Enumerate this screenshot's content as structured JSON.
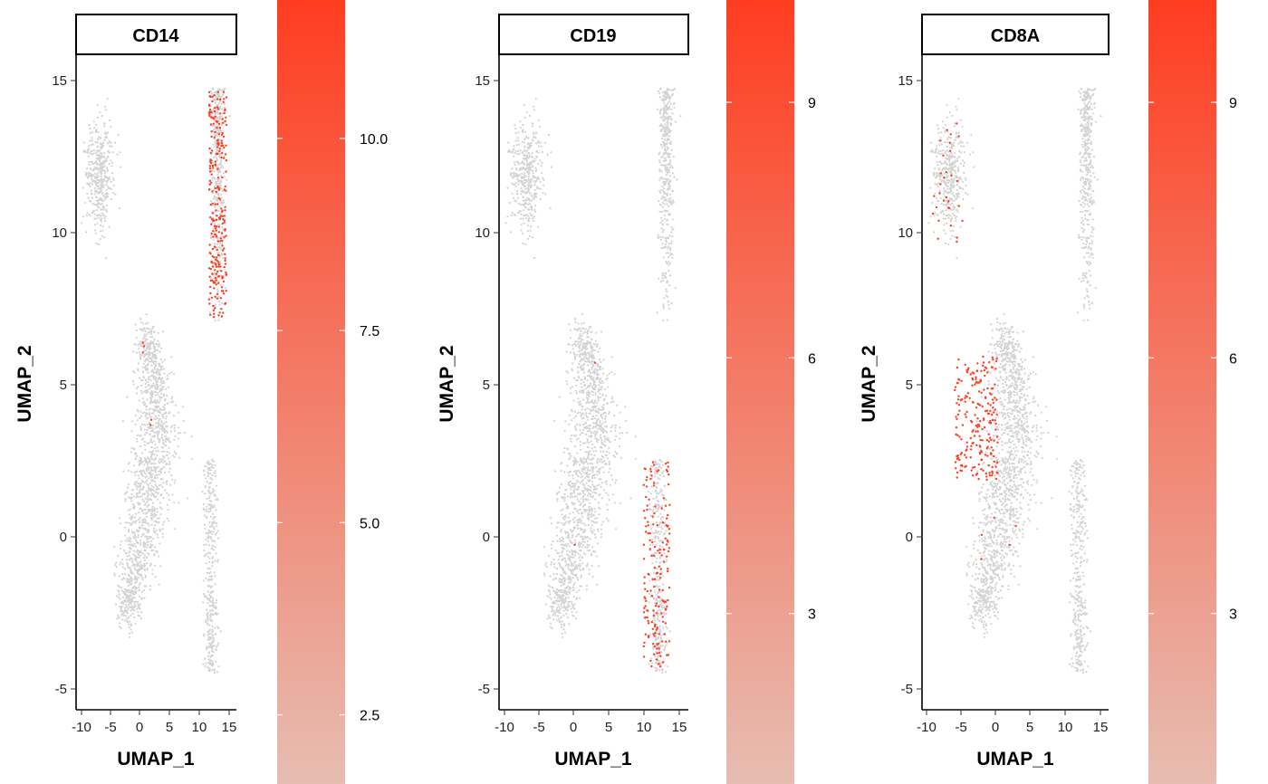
{
  "chart_data": [
    {
      "type": "scatter",
      "title": "CD14",
      "xlabel": "UMAP_1",
      "ylabel": "UMAP_2",
      "xticks": [
        "-10",
        "-5",
        "0",
        "5",
        "10",
        "15"
      ],
      "yticks": [
        "-5",
        "0",
        "5",
        "10",
        "15"
      ],
      "xlim": [
        -11,
        16.5
      ],
      "ylim": [
        -5.8,
        15.8
      ],
      "background_color": "#d3d3d3",
      "legend": {
        "labels": [
          "2.5",
          "5.0",
          "7.5",
          "10.0"
        ],
        "breaks": [
          2.5,
          5.0,
          7.5,
          10.0
        ],
        "range": [
          1.6,
          11.8
        ],
        "low_color": "#e6bdb1",
        "high_color": "#ff3d20",
        "position": "right"
      },
      "highlight_regions": [
        {
          "x": [
            11.8,
            14.8
          ],
          "y": [
            7.2,
            14.7
          ],
          "count": 260
        },
        {
          "x": [
            0.2,
            0.8
          ],
          "y": [
            5.9,
            6.6
          ],
          "count": 3
        },
        {
          "x": [
            1.5,
            2.5
          ],
          "y": [
            3.5,
            3.9
          ],
          "count": 2
        }
      ]
    },
    {
      "type": "scatter",
      "title": "CD19",
      "xlabel": "UMAP_1",
      "ylabel": "UMAP_2",
      "xticks": [
        "-10",
        "-5",
        "0",
        "5",
        "10",
        "15"
      ],
      "yticks": [
        "-5",
        "0",
        "5",
        "10",
        "15"
      ],
      "xlim": [
        -11,
        16.5
      ],
      "ylim": [
        -5.8,
        15.8
      ],
      "background_color": "#d3d3d3",
      "legend": {
        "labels": [
          "3",
          "6",
          "9"
        ],
        "breaks": [
          3,
          6,
          9
        ],
        "range": [
          1.0,
          10.2
        ],
        "low_color": "#e6bdb1",
        "high_color": "#ff3d20",
        "position": "right"
      },
      "highlight_regions": [
        {
          "x": [
            10.0,
            13.8
          ],
          "y": [
            -4.5,
            2.4
          ],
          "count": 170
        },
        {
          "x": [
            2.3,
            3.0
          ],
          "y": [
            5.6,
            5.9
          ],
          "count": 1
        },
        {
          "x": [
            -0.4,
            0.0
          ],
          "y": [
            -0.5,
            -0.3
          ],
          "count": 1
        }
      ]
    },
    {
      "type": "scatter",
      "title": "CD8A",
      "xlabel": "UMAP_1",
      "ylabel": "UMAP_2",
      "xticks": [
        "-10",
        "-5",
        "0",
        "5",
        "10",
        "15"
      ],
      "yticks": [
        "-5",
        "0",
        "5",
        "10",
        "15"
      ],
      "xlim": [
        -11,
        16.5
      ],
      "ylim": [
        -5.8,
        15.8
      ],
      "background_color": "#d3d3d3",
      "legend": {
        "labels": [
          "3",
          "6",
          "9"
        ],
        "breaks": [
          3,
          6,
          9
        ],
        "range": [
          1.0,
          10.2
        ],
        "low_color": "#e6bdb1",
        "high_color": "#ff3d20",
        "position": "right"
      },
      "highlight_regions": [
        {
          "x": [
            -6.2,
            0.2
          ],
          "y": [
            1.8,
            5.9
          ],
          "count": 220
        },
        {
          "x": [
            -9.5,
            -5.0
          ],
          "y": [
            9.7,
            13.7
          ],
          "count": 30
        },
        {
          "x": [
            -3.5,
            3.0
          ],
          "y": [
            -1.2,
            0.7
          ],
          "count": 5
        }
      ]
    }
  ]
}
